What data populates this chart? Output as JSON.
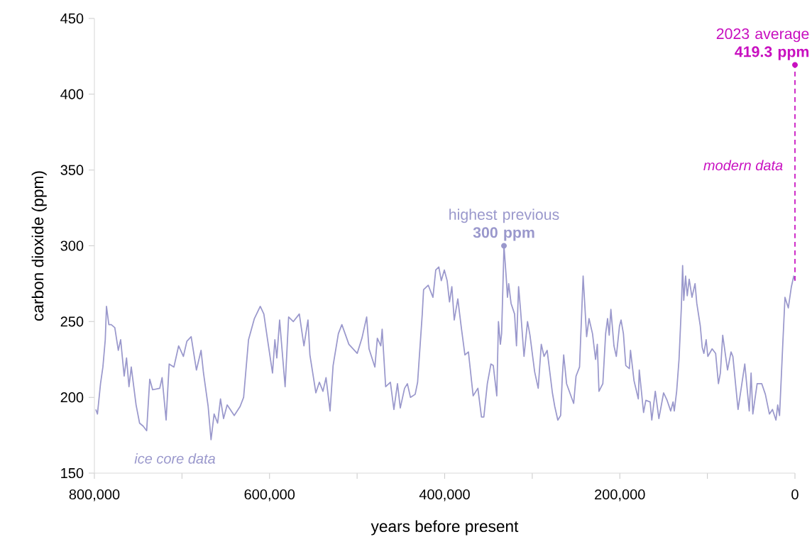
{
  "chart_data": {
    "type": "line",
    "xlabel": "years before present",
    "ylabel": "carbon dioxide (ppm)",
    "xlim": [
      800000,
      0
    ],
    "ylim": [
      150,
      450
    ],
    "xticks": [
      {
        "value": 800000,
        "label": "800,000"
      },
      {
        "value": 700000,
        "label": null
      },
      {
        "value": 600000,
        "label": "600,000"
      },
      {
        "value": 500000,
        "label": null
      },
      {
        "value": 400000,
        "label": "400,000"
      },
      {
        "value": 300000,
        "label": null
      },
      {
        "value": 200000,
        "label": "200,000"
      },
      {
        "value": 100000,
        "label": null
      },
      0
    ],
    "yticks": [
      150,
      200,
      250,
      300,
      350,
      400,
      450
    ],
    "series": [
      {
        "name": "ice core data",
        "color": "#9a98cc",
        "x": [
          798400,
          796500,
          793000,
          790300,
          787600,
          786200,
          783500,
          780800,
          776700,
          772700,
          770000,
          766000,
          763300,
          760500,
          757900,
          752400,
          748400,
          744300,
          740300,
          736800,
          733500,
          725400,
          722700,
          718100,
          714600,
          709200,
          703800,
          698400,
          694400,
          689500,
          683500,
          678200,
          675400,
          670100,
          666800,
          663300,
          659300,
          656000,
          652500,
          648400,
          640300,
          633600,
          629600,
          624000,
          617300,
          610600,
          606500,
          602500,
          596600,
          593900,
          591700,
          588500,
          582200,
          578200,
          572800,
          566000,
          560700,
          556100,
          553900,
          547100,
          543100,
          539000,
          535500,
          530900,
          527400,
          521400,
          517400,
          509400,
          499900,
          494500,
          489100,
          486400,
          479700,
          476900,
          472900,
          471400,
          467400,
          462000,
          458000,
          453900,
          450700,
          445800,
          442600,
          439100,
          433700,
          430900,
          428800,
          425600,
          424100,
          418800,
          413400,
          410200,
          406700,
          403900,
          400400,
          397200,
          394500,
          391800,
          389100,
          385000,
          381000,
          376900,
          372900,
          367500,
          362100,
          358000,
          355300,
          351300,
          347200,
          344500,
          340500,
          338600,
          336400,
          335000,
          332900,
          332300,
          329700,
          328300,
          326900,
          324200,
          320200,
          318000,
          315600,
          313400,
          309400,
          305400,
          302600,
          297300,
          293200,
          289700,
          286500,
          283000,
          277000,
          274300,
          270800,
          267600,
          265700,
          264100,
          260800,
          252700,
          250000,
          246000,
          241900,
          237900,
          235200,
          231200,
          227700,
          225700,
          223800,
          219400,
          216200,
          214000,
          212100,
          210200,
          206700,
          204000,
          200400,
          198600,
          195900,
          193200,
          189100,
          187800,
          183800,
          178900,
          177800,
          172900,
          170300,
          165400,
          163500,
          159500,
          155400,
          150000,
          146000,
          141900,
          139200,
          137800,
          135100,
          132400,
          129700,
          128300,
          127000,
          124900,
          123000,
          120800,
          117600,
          114100,
          112100,
          108100,
          105900,
          104000,
          101400,
          99500,
          94600,
          90600,
          87400,
          85200,
          82500,
          77000,
          73000,
          70900,
          65000,
          57300,
          52200,
          50100,
          48100,
          43200,
          37900,
          33800,
          29200,
          25700,
          21700,
          19700,
          17600,
          13600,
          11400,
          7600,
          4100,
          1400,
          0
        ],
        "values": [
          192,
          189,
          209,
          220,
          238,
          260,
          248,
          248,
          246,
          231,
          238,
          214,
          226,
          207,
          220,
          195,
          183,
          181,
          178,
          212,
          205,
          206,
          213,
          185,
          222,
          220,
          234,
          227,
          237,
          240,
          218,
          231,
          216,
          194,
          172,
          189,
          183,
          199,
          186,
          195,
          188,
          194,
          200,
          238,
          252,
          260,
          255,
          239,
          216,
          238,
          226,
          251,
          207,
          253,
          250,
          255,
          234,
          251,
          228,
          203,
          210,
          204,
          213,
          191,
          221,
          242,
          248,
          235,
          229,
          239,
          253,
          232,
          220,
          239,
          234,
          245,
          207,
          210,
          192,
          209,
          193,
          206,
          209,
          200,
          202,
          210,
          228,
          255,
          271,
          274,
          266,
          284,
          286,
          277,
          284,
          277,
          263,
          273,
          251,
          265,
          246,
          228,
          230,
          201,
          206,
          187,
          187,
          209,
          222,
          221,
          201,
          250,
          235,
          242,
          286,
          300,
          279,
          266,
          275,
          262,
          255,
          234,
          273,
          258,
          227,
          250,
          241,
          217,
          206,
          235,
          227,
          231,
          203,
          194,
          185,
          188,
          213,
          228,
          209,
          196,
          214,
          220,
          280,
          240,
          252,
          242,
          225,
          235,
          204,
          209,
          242,
          252,
          241,
          258,
          234,
          227,
          247,
          251,
          242,
          221,
          219,
          231,
          211,
          199,
          218,
          190,
          198,
          197,
          185,
          204,
          186,
          203,
          198,
          191,
          197,
          191,
          204,
          225,
          260,
          287,
          264,
          280,
          267,
          278,
          266,
          275,
          262,
          247,
          233,
          229,
          238,
          227,
          232,
          229,
          209,
          216,
          241,
          218,
          230,
          227,
          192,
          222,
          191,
          216,
          189,
          209,
          209,
          202,
          189,
          192,
          185,
          195,
          188,
          239,
          266,
          259,
          273,
          280,
          277
        ]
      },
      {
        "name": "modern data",
        "color": "#c810c0",
        "line_style": "dashed",
        "x": [
          0,
          0
        ],
        "values": [
          277,
          419.3
        ]
      }
    ],
    "annotations": [
      {
        "text": "highest previous **300 ppm**",
        "x": 332300,
        "y": 300
      },
      {
        "text": "2023 average **419.3 ppm**",
        "x": 0,
        "y": 419.3
      }
    ]
  }
}
